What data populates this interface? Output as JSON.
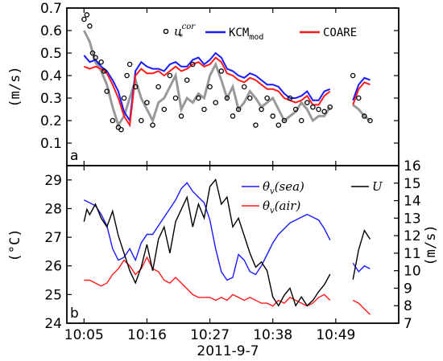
{
  "chart_data": [
    {
      "type": "line",
      "panel_label": "a",
      "ylabel": "(m/s)",
      "ylim": [
        0.0,
        0.7
      ],
      "yticks": [
        "0.1",
        "0.2",
        "0.3",
        "0.4",
        "0.5",
        "0.6",
        "0.7"
      ],
      "legend": {
        "ustar": {
          "base": "u",
          "sup": "cor",
          "sub": "*"
        },
        "kcm": {
          "base": "KCM",
          "sub": "mod"
        },
        "coare": "COARE"
      },
      "colors": {
        "obs": "#000000",
        "smooth": "#999999",
        "kcm": "#1a1aff",
        "coare": "#ff1a1a"
      },
      "x_minutes_since_1005": {
        "kcm": [
          0,
          1,
          2,
          3,
          4,
          5,
          6,
          7,
          8,
          9,
          10,
          11,
          12,
          13,
          14,
          15,
          16,
          17,
          18,
          19,
          20,
          21,
          22,
          23,
          24,
          25,
          26,
          27,
          28,
          29,
          30,
          31,
          32,
          33,
          34,
          35,
          36,
          37,
          38,
          39,
          40,
          41,
          42,
          43,
          47,
          48,
          49,
          50
        ],
        "obs": [
          0,
          0.5,
          1,
          1.5,
          2,
          3,
          3.5,
          4,
          5,
          6,
          6.5,
          7,
          7.5,
          8,
          9,
          10,
          11,
          12,
          13,
          14,
          15,
          16,
          17,
          18,
          19,
          20,
          21,
          22,
          23,
          24,
          25,
          26,
          27,
          28,
          29,
          30,
          31,
          32,
          33,
          34,
          35,
          36,
          37,
          38,
          39,
          40,
          41,
          42,
          43,
          47,
          48,
          49,
          50
        ]
      },
      "series": [
        {
          "name": "u*cor",
          "values": [
            0.65,
            0.67,
            0.62,
            0.5,
            0.48,
            0.46,
            0.42,
            0.33,
            0.2,
            0.17,
            0.16,
            0.3,
            0.4,
            0.45,
            0.35,
            0.2,
            0.28,
            0.18,
            0.35,
            0.25,
            0.4,
            0.3,
            0.22,
            0.38,
            0.45,
            0.3,
            0.25,
            0.35,
            0.28,
            0.42,
            0.3,
            0.22,
            0.25,
            0.35,
            0.3,
            0.18,
            0.25,
            0.3,
            0.22,
            0.18,
            0.2,
            0.3,
            0.25,
            0.2,
            0.28,
            0.26,
            0.25,
            0.24,
            0.26,
            0.4,
            0.3,
            0.22,
            0.2
          ]
        },
        {
          "name": "smoothed",
          "values": [
            0.6,
            0.55,
            0.46,
            0.42,
            0.36,
            0.26,
            0.18,
            0.22,
            0.3,
            0.38,
            0.3,
            0.25,
            0.2,
            0.28,
            0.3,
            0.35,
            0.4,
            0.25,
            0.3,
            0.28,
            0.32,
            0.3,
            0.4,
            0.45,
            0.38,
            0.3,
            0.35,
            0.25,
            0.28,
            0.33,
            0.3,
            0.26,
            0.28,
            0.3,
            0.25,
            0.2,
            0.22,
            0.24,
            0.28,
            0.25,
            0.2,
            0.22,
            0.22,
            0.26,
            0.27,
            0.25,
            0.22,
            0.2
          ]
        },
        {
          "name": "KCM_mod",
          "values": [
            0.49,
            0.46,
            0.47,
            0.44,
            0.42,
            0.38,
            0.33,
            0.24,
            0.2,
            0.42,
            0.46,
            0.44,
            0.43,
            0.43,
            0.42,
            0.45,
            0.46,
            0.44,
            0.44,
            0.47,
            0.48,
            0.45,
            0.47,
            0.5,
            0.48,
            0.43,
            0.42,
            0.4,
            0.39,
            0.41,
            0.4,
            0.38,
            0.36,
            0.36,
            0.35,
            0.32,
            0.3,
            0.3,
            0.31,
            0.33,
            0.29,
            0.29,
            0.33,
            0.34,
            0.29,
            0.36,
            0.39,
            0.38
          ]
        },
        {
          "name": "COARE",
          "values": [
            0.44,
            0.43,
            0.44,
            0.43,
            0.41,
            0.36,
            0.3,
            0.22,
            0.18,
            0.4,
            0.43,
            0.41,
            0.41,
            0.42,
            0.4,
            0.42,
            0.44,
            0.42,
            0.43,
            0.45,
            0.46,
            0.44,
            0.45,
            0.48,
            0.46,
            0.41,
            0.4,
            0.38,
            0.37,
            0.39,
            0.38,
            0.36,
            0.34,
            0.34,
            0.33,
            0.3,
            0.29,
            0.28,
            0.29,
            0.31,
            0.27,
            0.27,
            0.31,
            0.33,
            0.27,
            0.34,
            0.37,
            0.36
          ]
        }
      ]
    },
    {
      "type": "line",
      "panel_label": "b",
      "ylabel_left": "(°C)",
      "ylabel_right": "(m/s)",
      "xlabel": "2011-9-7",
      "x_tick_labels": [
        "10:05",
        "10:16",
        "10:27",
        "10:38",
        "10:49"
      ],
      "xlim_minutes_since_1005": [
        -3,
        55
      ],
      "ylim_left": [
        24,
        29.5
      ],
      "yticks_left": [
        "24",
        "25",
        "26",
        "27",
        "28",
        "29"
      ],
      "ylim_right": [
        7,
        16
      ],
      "yticks_right": [
        "7",
        "8",
        "9",
        "10",
        "11",
        "12",
        "13",
        "14",
        "15",
        "16"
      ],
      "legend": {
        "theta_sea": {
          "sym": "θ",
          "sub": "v",
          "text": "(sea)"
        },
        "theta_air": {
          "sym": "θ",
          "sub": "v",
          "text": "(air)"
        },
        "wind": "U"
      },
      "colors": {
        "theta_sea": "#1a1aff",
        "theta_air": "#ff1a1a",
        "wind": "#000000"
      },
      "x_minutes_since_1005": {
        "theta": [
          0,
          1,
          2,
          3,
          4,
          5,
          6,
          7,
          8,
          9,
          10,
          11,
          12,
          13,
          14,
          15,
          16,
          17,
          18,
          19,
          20,
          21,
          22,
          23,
          24,
          25,
          26,
          27,
          28,
          29,
          30,
          31,
          32,
          33,
          34,
          35,
          36,
          37,
          38,
          39,
          40,
          41,
          42,
          43,
          47,
          48,
          49,
          50
        ],
        "wind": [
          0,
          0.5,
          1,
          2,
          3,
          4,
          5,
          6,
          7,
          8,
          9,
          10,
          11,
          12,
          13,
          14,
          15,
          16,
          17,
          18,
          19,
          20,
          21,
          22,
          23,
          24,
          25,
          26,
          27,
          28,
          29,
          30,
          31,
          32,
          33,
          34,
          35,
          36,
          37,
          38,
          39,
          40,
          41,
          42,
          43,
          47,
          48,
          49,
          50
        ]
      },
      "series": [
        {
          "name": "theta_v(sea)",
          "axis": "left",
          "values": [
            28.3,
            28.2,
            28.1,
            27.8,
            27.4,
            26.6,
            26.2,
            26.3,
            26.6,
            26.2,
            26.8,
            27.1,
            27.1,
            27.4,
            27.7,
            28.0,
            28.3,
            28.7,
            28.9,
            28.6,
            28.4,
            28.2,
            27.6,
            26.6,
            25.8,
            25.5,
            25.6,
            26.4,
            26.2,
            25.8,
            25.7,
            26.0,
            26.4,
            26.8,
            27.1,
            27.3,
            27.5,
            27.6,
            27.7,
            27.8,
            27.7,
            27.6,
            27.3,
            26.9,
            26.1,
            25.8,
            26.0,
            25.9
          ]
        },
        {
          "name": "theta_v(air)",
          "axis": "left",
          "values": [
            25.5,
            25.5,
            25.4,
            25.3,
            25.4,
            25.7,
            25.9,
            26.2,
            26.0,
            25.7,
            25.9,
            26.3,
            25.9,
            25.8,
            25.5,
            25.4,
            25.6,
            25.4,
            25.2,
            25.0,
            24.9,
            24.9,
            24.9,
            24.8,
            24.9,
            24.8,
            25.0,
            24.9,
            24.8,
            24.9,
            24.8,
            24.7,
            24.7,
            24.6,
            24.8,
            24.7,
            24.9,
            24.8,
            24.7,
            24.6,
            24.7,
            24.9,
            25.0,
            24.8,
            24.8,
            24.7,
            24.5,
            24.3
          ]
        },
        {
          "name": "U",
          "axis": "right",
          "values": [
            12.8,
            13.5,
            13.2,
            13.8,
            13.0,
            12.5,
            13.4,
            12.0,
            11.0,
            10.0,
            9.3,
            10.2,
            11.5,
            10.0,
            11.8,
            12.5,
            11.0,
            12.8,
            13.5,
            14.2,
            12.5,
            13.8,
            13.0,
            14.8,
            15.2,
            13.8,
            14.2,
            12.5,
            13.0,
            12.0,
            11.0,
            10.2,
            10.5,
            10.0,
            8.5,
            8.0,
            8.6,
            9.0,
            8.0,
            8.5,
            8.0,
            8.3,
            8.8,
            9.2,
            9.8,
            9.5,
            11.2,
            12.3,
            11.8
          ]
        }
      ]
    }
  ]
}
